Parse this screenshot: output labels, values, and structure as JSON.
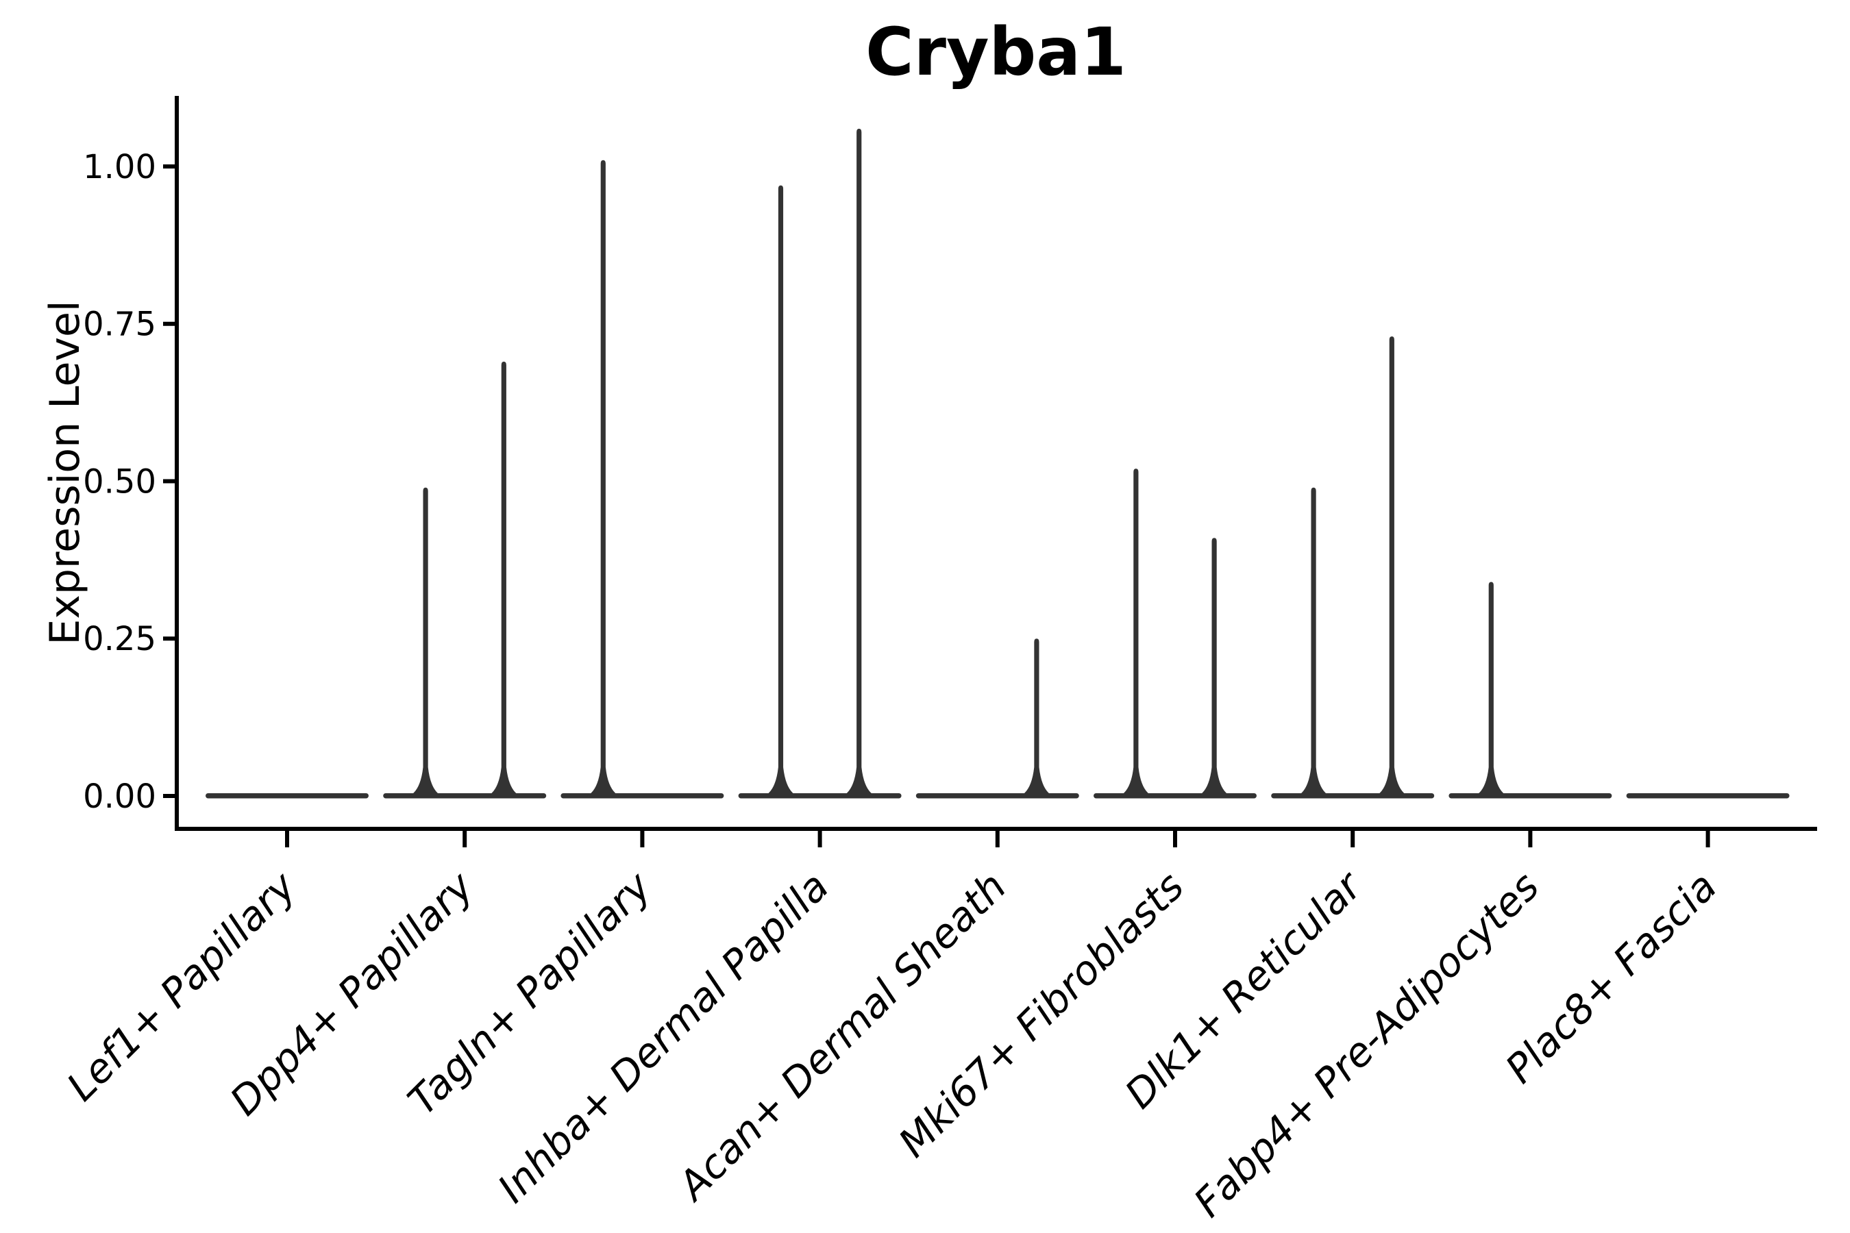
{
  "figure": {
    "title": "Cryba1",
    "y_axis_label": "Expression Level"
  },
  "chart_data": {
    "type": "violin",
    "title": "Cryba1",
    "xlabel": "",
    "ylabel": "Expression Level",
    "ylim": [
      -0.05,
      1.11
    ],
    "grid": false,
    "legend": "none",
    "x_tick_rotation_deg": 45,
    "x_tick_font_style": "italic",
    "yticks": [
      0.0,
      0.25,
      0.5,
      0.75,
      1.0
    ],
    "ytick_labels": [
      "0.00",
      "0.25",
      "0.50",
      "0.75",
      "1.00"
    ],
    "categories": [
      "Lef1+ Papillary",
      "Dpp4+ Papillary",
      "Tagln+ Papillary",
      "Inhba+ Dermal Papilla",
      "Acan+ Dermal Sheath",
      "Mki67+ Fibroblasts",
      "Dlk1+ Reticular",
      "Fabp4+ Pre-Adipocytes",
      "Plac8+ Fascia"
    ],
    "violins": [
      {
        "category": "Lef1+ Papillary",
        "baseline": 0.0,
        "spikes": []
      },
      {
        "category": "Dpp4+ Papillary",
        "baseline": 0.0,
        "spikes": [
          {
            "offset_frac": -0.24,
            "peak": 0.49
          },
          {
            "offset_frac": 0.24,
            "peak": 0.69
          }
        ]
      },
      {
        "category": "Tagln+ Papillary",
        "baseline": 0.0,
        "spikes": [
          {
            "offset_frac": -0.24,
            "peak": 1.01
          }
        ]
      },
      {
        "category": "Inhba+ Dermal Papilla",
        "baseline": 0.0,
        "spikes": [
          {
            "offset_frac": -0.24,
            "peak": 0.97
          },
          {
            "offset_frac": 0.24,
            "peak": 1.06
          }
        ]
      },
      {
        "category": "Acan+ Dermal Sheath",
        "baseline": 0.0,
        "spikes": [
          {
            "offset_frac": 0.24,
            "peak": 0.25
          }
        ]
      },
      {
        "category": "Mki67+ Fibroblasts",
        "baseline": 0.0,
        "spikes": [
          {
            "offset_frac": -0.24,
            "peak": 0.52
          },
          {
            "offset_frac": 0.24,
            "peak": 0.41
          }
        ]
      },
      {
        "category": "Dlk1+ Reticular",
        "baseline": 0.0,
        "spikes": [
          {
            "offset_frac": -0.24,
            "peak": 0.49
          },
          {
            "offset_frac": 0.24,
            "peak": 0.73
          }
        ]
      },
      {
        "category": "Fabp4+ Pre-Adipocytes",
        "baseline": 0.0,
        "spikes": [
          {
            "offset_frac": -0.24,
            "peak": 0.34
          }
        ]
      },
      {
        "category": "Plac8+ Fascia",
        "baseline": 0.0,
        "spikes": []
      }
    ],
    "colors": {
      "violin": "#333333",
      "axis": "#000000",
      "text": "#000000",
      "background": "#ffffff"
    }
  }
}
